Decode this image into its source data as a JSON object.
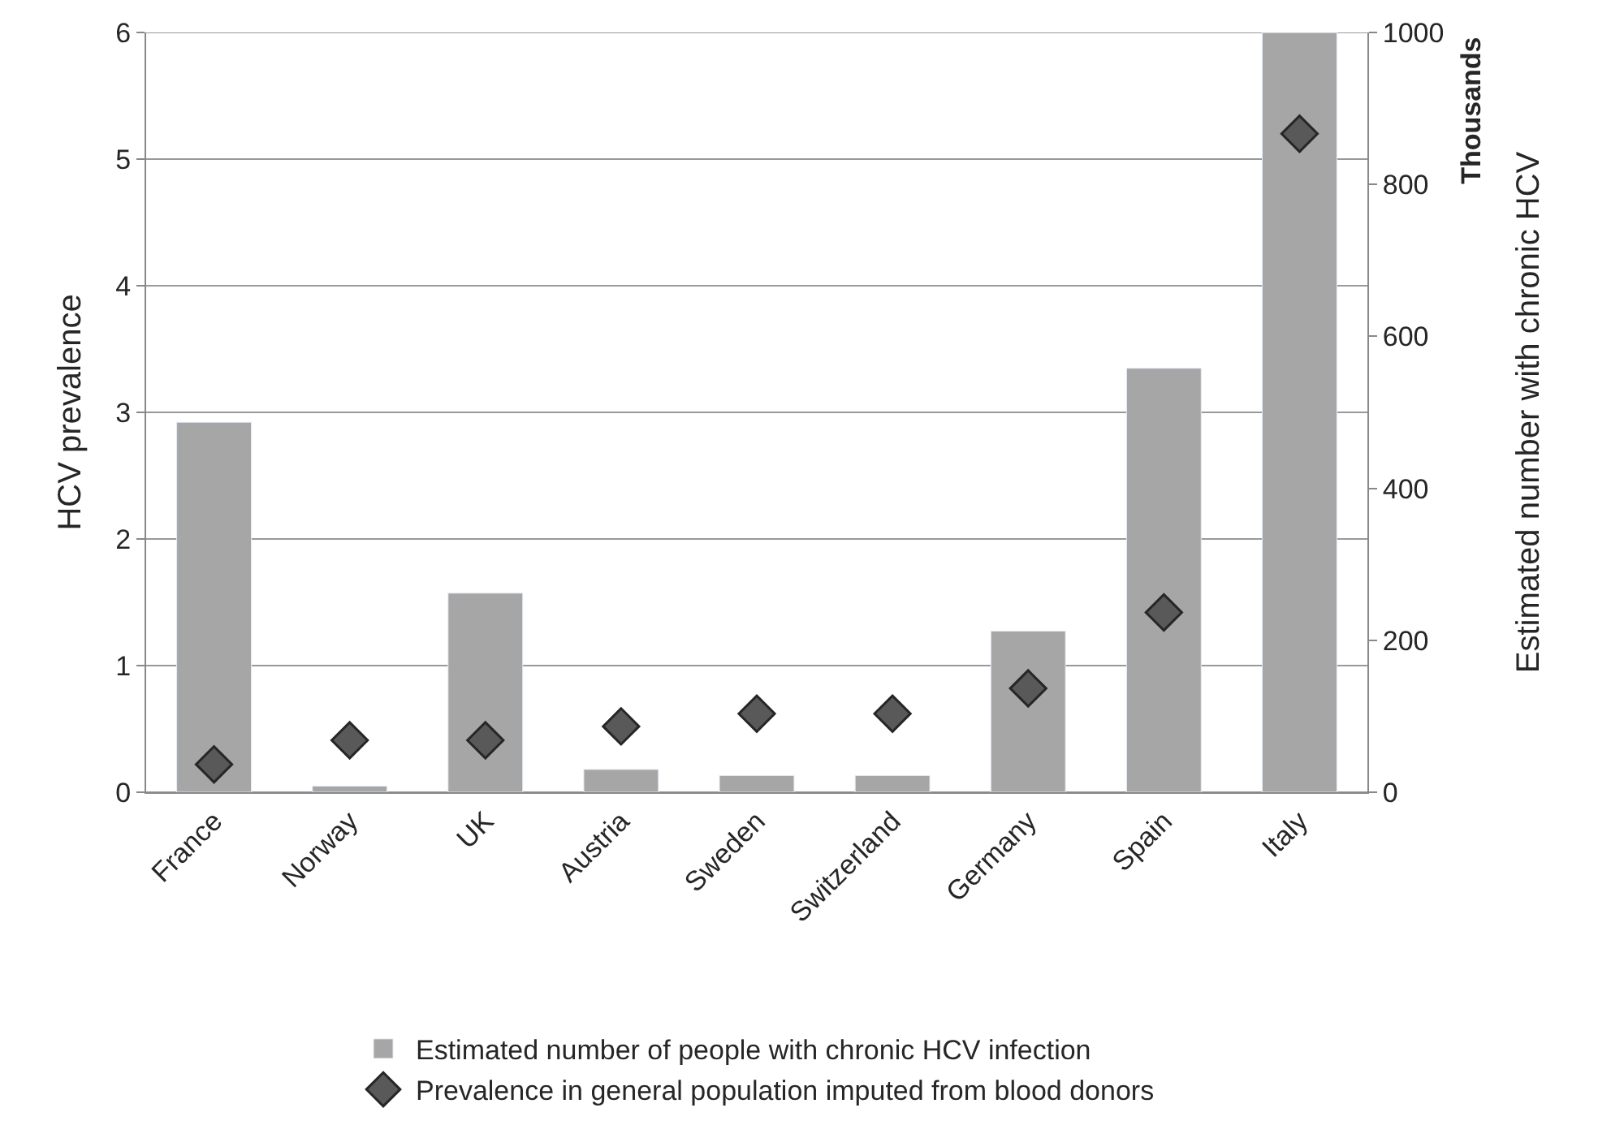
{
  "chart_data": {
    "type": "bar",
    "categories": [
      "France",
      "Norway",
      "UK",
      "Austria",
      "Sweden",
      "Switzerland",
      "Germany",
      "Spain",
      "Italy"
    ],
    "ylabel": "HCV prevalence",
    "y2label": "Estimated number with chronic HCV",
    "annotations": [
      "Thousands"
    ],
    "ylim": [
      0,
      6
    ],
    "yticks": [
      0,
      1,
      2,
      3,
      4,
      5,
      6
    ],
    "y2lim": [
      0,
      1000
    ],
    "y2ticks": [
      0,
      200,
      400,
      600,
      800,
      1000
    ],
    "grid": "y",
    "legend": "bottom",
    "series": [
      {
        "name": "Estimated number of people with chronic HCV infection",
        "axis": "y2",
        "color": "#a6a6a6",
        "values": [
          487,
          8,
          262,
          30,
          22,
          22,
          212,
          558,
          1000
        ]
      },
      {
        "name": "Prevalence in general population imputed from blood donors",
        "type": "scatter",
        "marker": "diamond",
        "color": "#595959",
        "values": [
          0.22,
          0.41,
          0.41,
          0.52,
          0.62,
          0.62,
          0.82,
          1.42,
          5.2
        ]
      }
    ]
  }
}
